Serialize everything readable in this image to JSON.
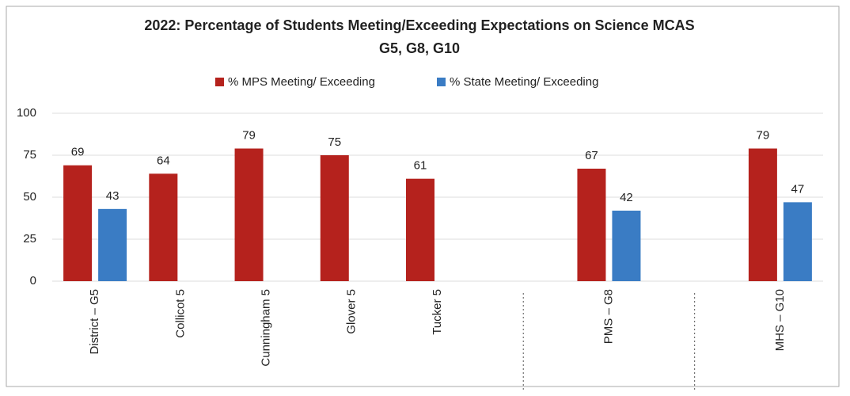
{
  "chart_data": {
    "type": "bar",
    "title": "2022: Percentage of Students Meeting/Exceeding Expectations on Science MCAS",
    "subtitle": "G5, G8, G10",
    "categories": [
      "District – G5",
      "Collicot 5",
      "Cunningham 5",
      "Glover 5",
      "Tucker 5",
      null,
      "PMS – G8",
      null,
      "MHS – G10"
    ],
    "series": [
      {
        "name": "% MPS Meeting/ Exceeding",
        "color": "#b5221d",
        "values": [
          69,
          64,
          79,
          75,
          61,
          null,
          67,
          null,
          79
        ]
      },
      {
        "name": "% State Meeting/ Exceeding",
        "color": "#3a7cc4",
        "values": [
          43,
          null,
          null,
          null,
          null,
          null,
          42,
          null,
          47
        ]
      }
    ],
    "ylim": [
      0,
      100
    ],
    "yticks": [
      0,
      25,
      50,
      75,
      100
    ],
    "grid": true,
    "legend": "top"
  }
}
